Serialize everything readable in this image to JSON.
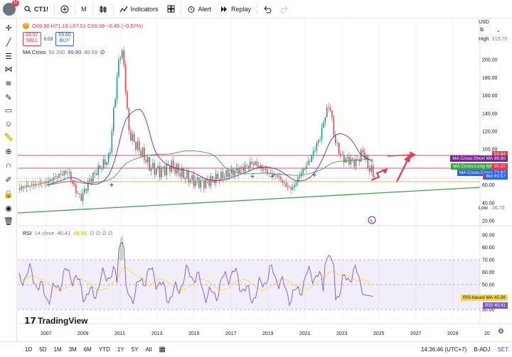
{
  "topbar": {
    "avatar_badge": "11",
    "symbol": "CT1!",
    "interval": "M",
    "indicators_label": "Indicators",
    "alert_label": "Alert",
    "replay_label": "Replay"
  },
  "legend": {
    "symbol_marker": "D",
    "ohlc": "O69.92  H71.18  L67.51  C69.59  −0.40 (−0.57%)",
    "sell_price": "69.57",
    "sell_label": "SELL",
    "spread": "0.03",
    "buy_price": "69.60",
    "buy_label": "BUY",
    "ma_label": "MA Cross",
    "ma_params": "50 200",
    "ma_short": "89.80",
    "ma_long": "80.59"
  },
  "rsi_legend": {
    "label": "RSI",
    "params": "14 close",
    "rsi_value": "40.41",
    "rsi_ma_value": "45.56",
    "extra": "∅ ∅ ∅ ∅"
  },
  "watermark": "TradingView",
  "price_scale": {
    "currency": "USD",
    "unit": "lb",
    "high_label": "High",
    "high_value": "219.70",
    "low_label": "Low",
    "low_value": "36.70",
    "ticks": [
      "200.00",
      "180.00",
      "160.00",
      "140.00",
      "120.00",
      "100.00",
      "80.00",
      "60.00",
      "40.00",
      "20.00"
    ]
  },
  "price_tags": [
    {
      "label": "",
      "value": "93.94",
      "color": "#f23645"
    },
    {
      "label": "MA Cross:Short MA",
      "value": "89.80",
      "color": "#7b1fa2"
    },
    {
      "label": "MA Cross:Long MA",
      "value": "80.59",
      "color": "#43a047"
    },
    {
      "label": "",
      "value": "80.37",
      "color": "#f23645"
    },
    {
      "label": "MA Cross:Cross",
      "value": "73.62",
      "color": "#2962ff"
    },
    {
      "label": "Ask",
      "value": "69.60",
      "color": "#f23645"
    },
    {
      "label": "",
      "value": "69.59",
      "color": "#f23645"
    },
    {
      "label": "Bid",
      "value": "69.57",
      "color": "#2962ff"
    }
  ],
  "rsi_scale": {
    "ticks": [
      "90.00",
      "80.00",
      "70.00",
      "60.00",
      "50.00",
      "40.00",
      "30.00"
    ],
    "rsi_ma_tag_label": "RSI-based MA",
    "rsi_ma_tag_value": "45.56",
    "rsi_tag_label": "RSI",
    "rsi_tag_value": "40.41"
  },
  "time_axis": [
    "2007",
    "2009",
    "2011",
    "2013",
    "2015",
    "2017",
    "2019",
    "2021",
    "2023",
    "2025",
    "2027",
    "2029",
    "20"
  ],
  "bottombar": {
    "ranges": [
      "1D",
      "5D",
      "1M",
      "3M",
      "6M",
      "YTD",
      "1Y",
      "5Y",
      "All"
    ],
    "clock": "14:36:46 (UTC+7)",
    "adj": "B-ADJ",
    "set": "SET"
  },
  "colors": {
    "up": "#089981",
    "down": "#f23645",
    "ma_short": "#7b1fa2",
    "ma_long": "#43a047",
    "rsi": "#7e57c2",
    "rsi_ma": "#fdd835"
  }
}
